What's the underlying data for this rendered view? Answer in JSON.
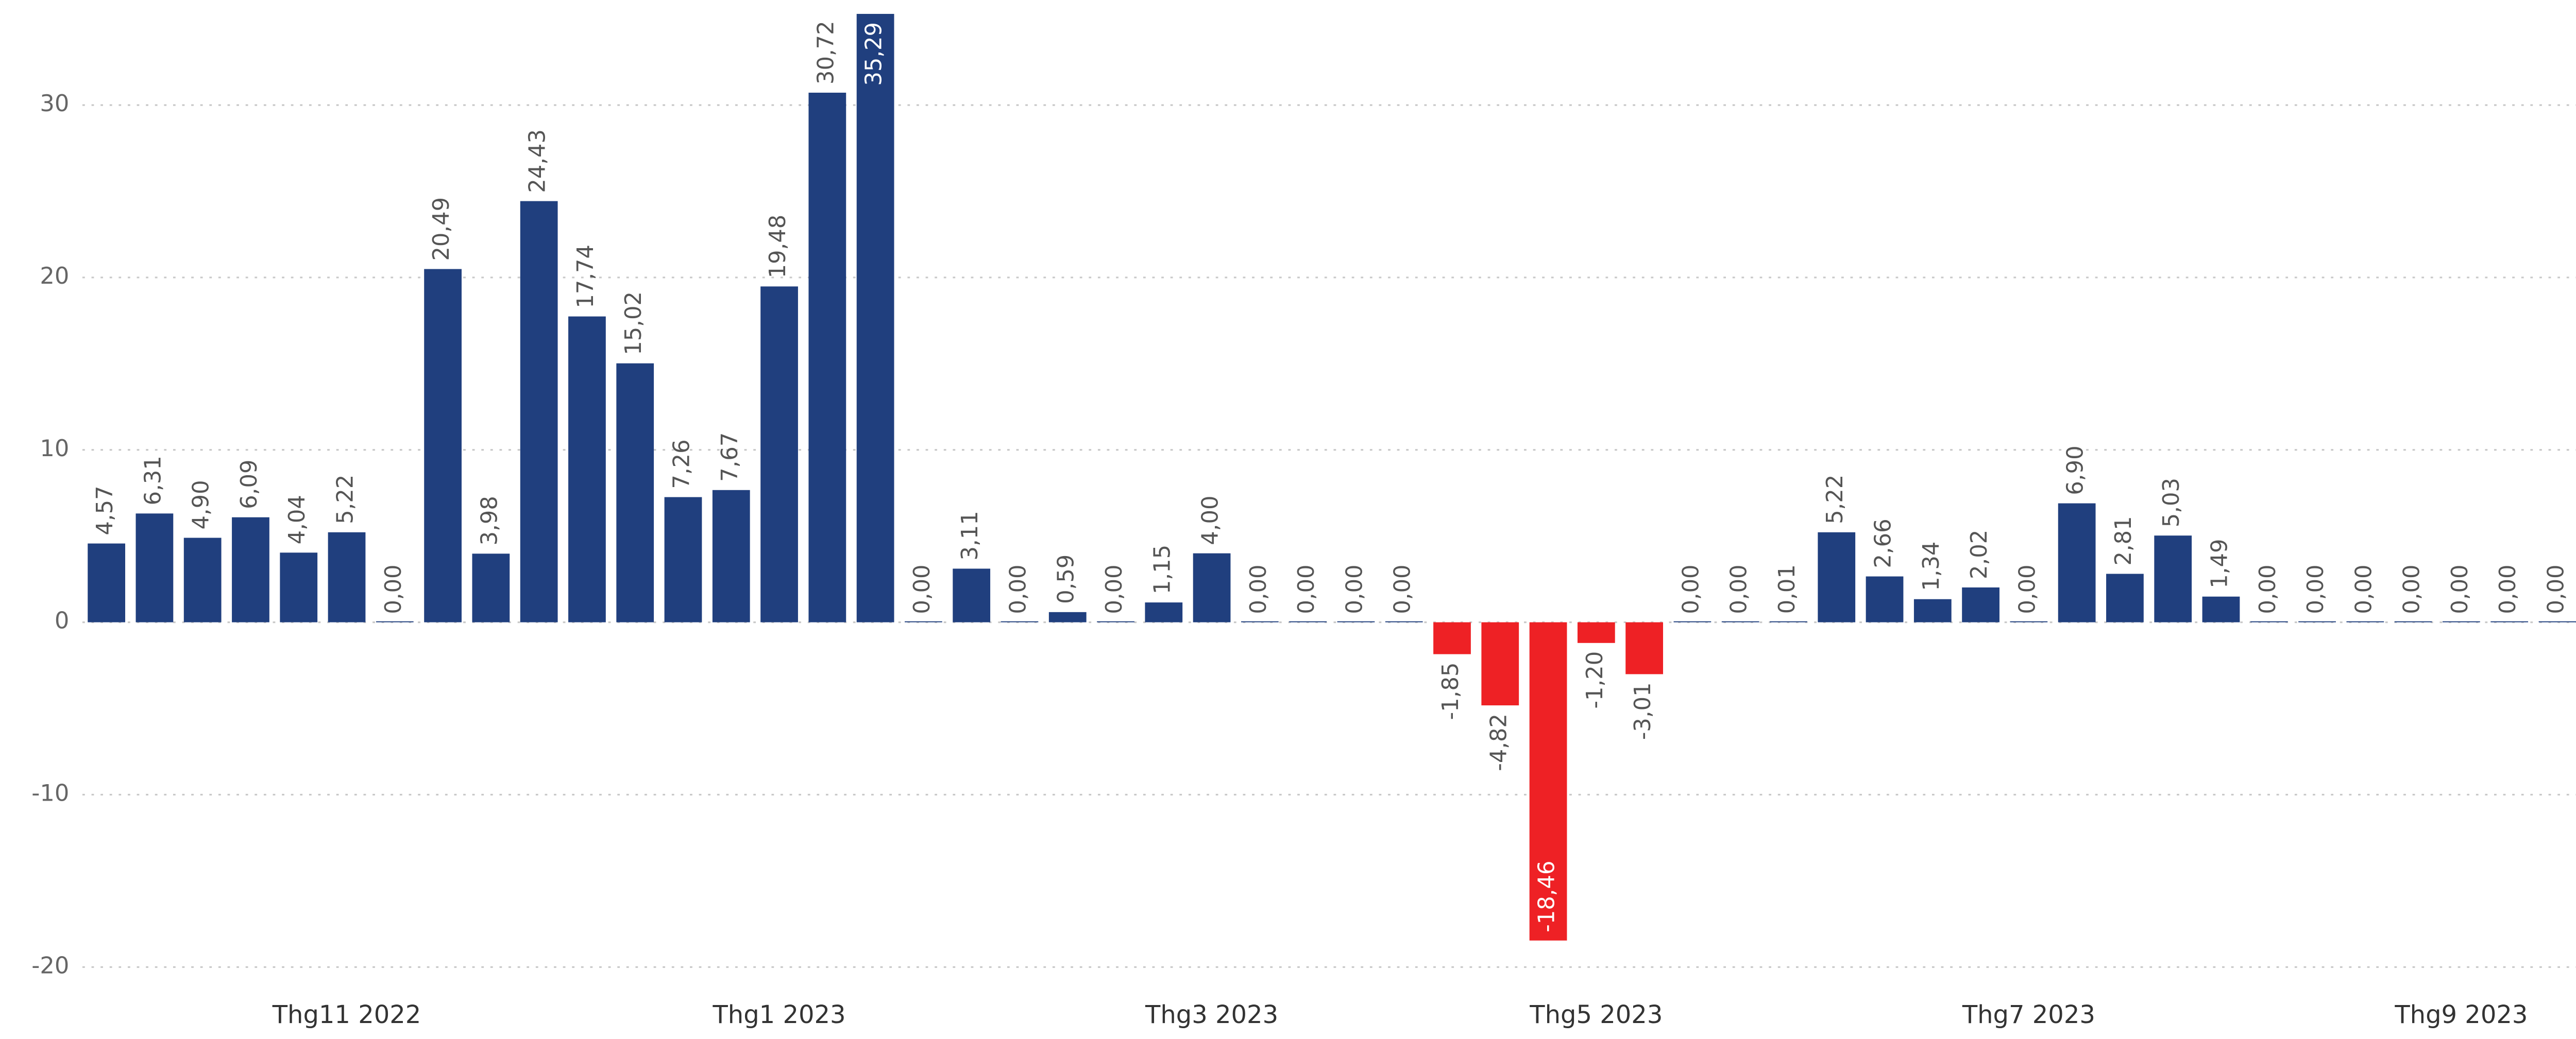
{
  "chart_data": {
    "type": "bar",
    "categories": [
      null,
      null,
      null,
      null,
      null,
      "Thg11 2022",
      null,
      null,
      null,
      null,
      null,
      null,
      null,
      null,
      "Thg1 2023",
      null,
      null,
      null,
      null,
      null,
      null,
      null,
      null,
      "Thg3 2023",
      null,
      null,
      null,
      null,
      null,
      null,
      null,
      "Thg5 2023",
      null,
      null,
      null,
      null,
      null,
      null,
      null,
      null,
      "Thg7 2023",
      null,
      null,
      null,
      null,
      null,
      null,
      null,
      null,
      "Thg9 2023",
      null,
      null
    ],
    "values": [
      4.57,
      6.31,
      4.9,
      6.09,
      4.04,
      5.22,
      0.0,
      20.49,
      3.98,
      24.43,
      17.74,
      15.02,
      7.26,
      7.67,
      19.48,
      30.72,
      35.29,
      0.0,
      3.11,
      0.0,
      0.59,
      0.0,
      1.15,
      4.0,
      0.0,
      0.0,
      0.0,
      0.0,
      -1.85,
      -4.82,
      -18.46,
      -1.2,
      -3.01,
      0.0,
      0.0,
      0.01,
      5.22,
      2.66,
      1.34,
      2.02,
      0.0,
      6.9,
      2.81,
      5.03,
      1.49,
      0.0,
      0.0,
      0.0,
      0.0,
      0.0,
      0.0,
      0.0
    ],
    "value_labels": [
      "4,57",
      "6,31",
      "4,90",
      "6,09",
      "4,04",
      "5,22",
      "0,00",
      "20,49",
      "3,98",
      "24,43",
      "17,74",
      "15,02",
      "7,26",
      "7,67",
      "19,48",
      "30,72",
      "35,29",
      "0,00",
      "3,11",
      "0,00",
      "0,59",
      "0,00",
      "1,15",
      "4,00",
      "0,00",
      "0,00",
      "0,00",
      "0,00",
      "-1,85",
      "-4,82",
      "-18,46",
      "-1,20",
      "-3,01",
      "0,00",
      "0,00",
      "0,01",
      "5,22",
      "2,66",
      "1,34",
      "2,02",
      "0,00",
      "6,90",
      "2,81",
      "5,03",
      "1,49",
      "0,00",
      "0,00",
      "0,00",
      "0,00",
      "0,00",
      "0,00",
      "0,00"
    ],
    "color": "#203f7e",
    "negative_color": "#ee2125",
    "ylim": [
      -21,
      36
    ],
    "yticks": [
      -20,
      -10,
      0,
      10,
      20,
      30
    ],
    "grid": true
  }
}
